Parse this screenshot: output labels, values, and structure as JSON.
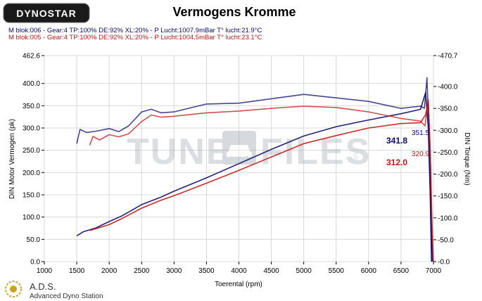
{
  "header": {
    "logo_text": "DYNOSTAR",
    "title": "Vermogens Kromme"
  },
  "runs": [
    {
      "label": "M blok:006 - Gear:4 TP:100% DE:92% XL:20%     - P Lucht:1007.9mBar T° lucht:21.9°C",
      "color": "#0a0a6e"
    },
    {
      "label": "M blok:005 - Gear:4 TP:100% DE:92% XL:20%     - P Lucht:1004.5mBar T° lucht:23.1°C",
      "color": "#c81414"
    }
  ],
  "watermark": {
    "tune": "TUNE",
    "files": "FILES",
    "com": ".com"
  },
  "footer": {
    "brand": "A.D.S.",
    "subtitle": "Advanced Dyno Station"
  },
  "chart_data": {
    "type": "line",
    "xlabel": "Toerental (rpm)",
    "ylabel_left": "DIN Motor Vermogen (pk)",
    "ylabel_right": "DIN Torque (Nm)",
    "xlim": [
      1000,
      7000
    ],
    "ylim_left": [
      0.0,
      462.6
    ],
    "ylim_right": [
      -470.7,
      0.0
    ],
    "x_ticks": [
      1000,
      1500,
      2000,
      2500,
      3000,
      3500,
      4000,
      4500,
      5000,
      5500,
      6000,
      6500,
      7000
    ],
    "y_left_ticks": [
      "0.0",
      "50.0",
      "100.0",
      "150.0",
      "200.0",
      "250.0",
      "300.0",
      "350.0",
      "400.0",
      "462.6"
    ],
    "y_right_ticks": [
      "-0.0",
      "-50.0",
      "-100.0",
      "-150.0",
      "-200.0",
      "-250.0",
      "-300.0",
      "-350.0",
      "-400.0",
      "-470.7"
    ],
    "grid": true,
    "series": [
      {
        "name": "M blok:006 power",
        "color": "#0a0a6e",
        "axis": "left",
        "x": [
          1500,
          1600,
          1800,
          2000,
          2200,
          2500,
          2800,
          3000,
          3500,
          4000,
          4500,
          5000,
          5500,
          6000,
          6500,
          6800,
          6880,
          6920,
          6950,
          6970
        ],
        "y": [
          58,
          67,
          76,
          90,
          103,
          128,
          145,
          158,
          188,
          220,
          252,
          282,
          303,
          318,
          332,
          341.8,
          380,
          300,
          150,
          0
        ]
      },
      {
        "name": "M blok:005 power",
        "color": "#c81414",
        "axis": "left",
        "x": [
          1700,
          1800,
          2000,
          2200,
          2500,
          2800,
          3000,
          3500,
          4000,
          4500,
          5000,
          5500,
          6000,
          6500,
          6800,
          6880,
          6920,
          6950,
          6970,
          6990
        ],
        "y": [
          70,
          74,
          83,
          97,
          120,
          138,
          148,
          176,
          205,
          235,
          265,
          283,
          300,
          310,
          312.0,
          330,
          360,
          250,
          100,
          0
        ]
      },
      {
        "name": "M blok:006 torque",
        "color": "#0a0a6e",
        "axis": "right",
        "x": [
          1500,
          1550,
          1650,
          1800,
          2000,
          2150,
          2300,
          2500,
          2650,
          2800,
          3000,
          3500,
          4000,
          4500,
          5000,
          5500,
          6000,
          6500,
          6800,
          6860,
          6900,
          6930,
          6960,
          6980
        ],
        "y": [
          -270,
          -302,
          -295,
          -298,
          -304,
          -297,
          -310,
          -342,
          -348,
          -340,
          -342,
          -360,
          -362,
          -372,
          -382,
          -374,
          -366,
          -350,
          -355,
          -350,
          -420,
          -300,
          -100,
          0
        ]
      },
      {
        "name": "M blok:005 torque",
        "color": "#c81414",
        "axis": "right",
        "x": [
          1700,
          1750,
          1850,
          2000,
          2150,
          2300,
          2500,
          2650,
          2800,
          3000,
          3500,
          4000,
          4500,
          5000,
          5500,
          6000,
          6500,
          6800,
          6870,
          6920,
          6950,
          6980,
          7000
        ],
        "y": [
          -266,
          -286,
          -278,
          -290,
          -285,
          -292,
          -320,
          -335,
          -330,
          -332,
          -340,
          -344,
          -350,
          -355,
          -352,
          -342,
          -327,
          -321.0,
          -310,
          -370,
          -250,
          -80,
          0
        ]
      }
    ],
    "annotations": [
      {
        "text": "341.8",
        "series": "M blok:006 power"
      },
      {
        "text": "312.0",
        "series": "M blok:005 power"
      },
      {
        "text": "351.5",
        "series": "M blok:006 torque"
      },
      {
        "text": "320.9",
        "series": "M blok:005 torque"
      }
    ]
  }
}
